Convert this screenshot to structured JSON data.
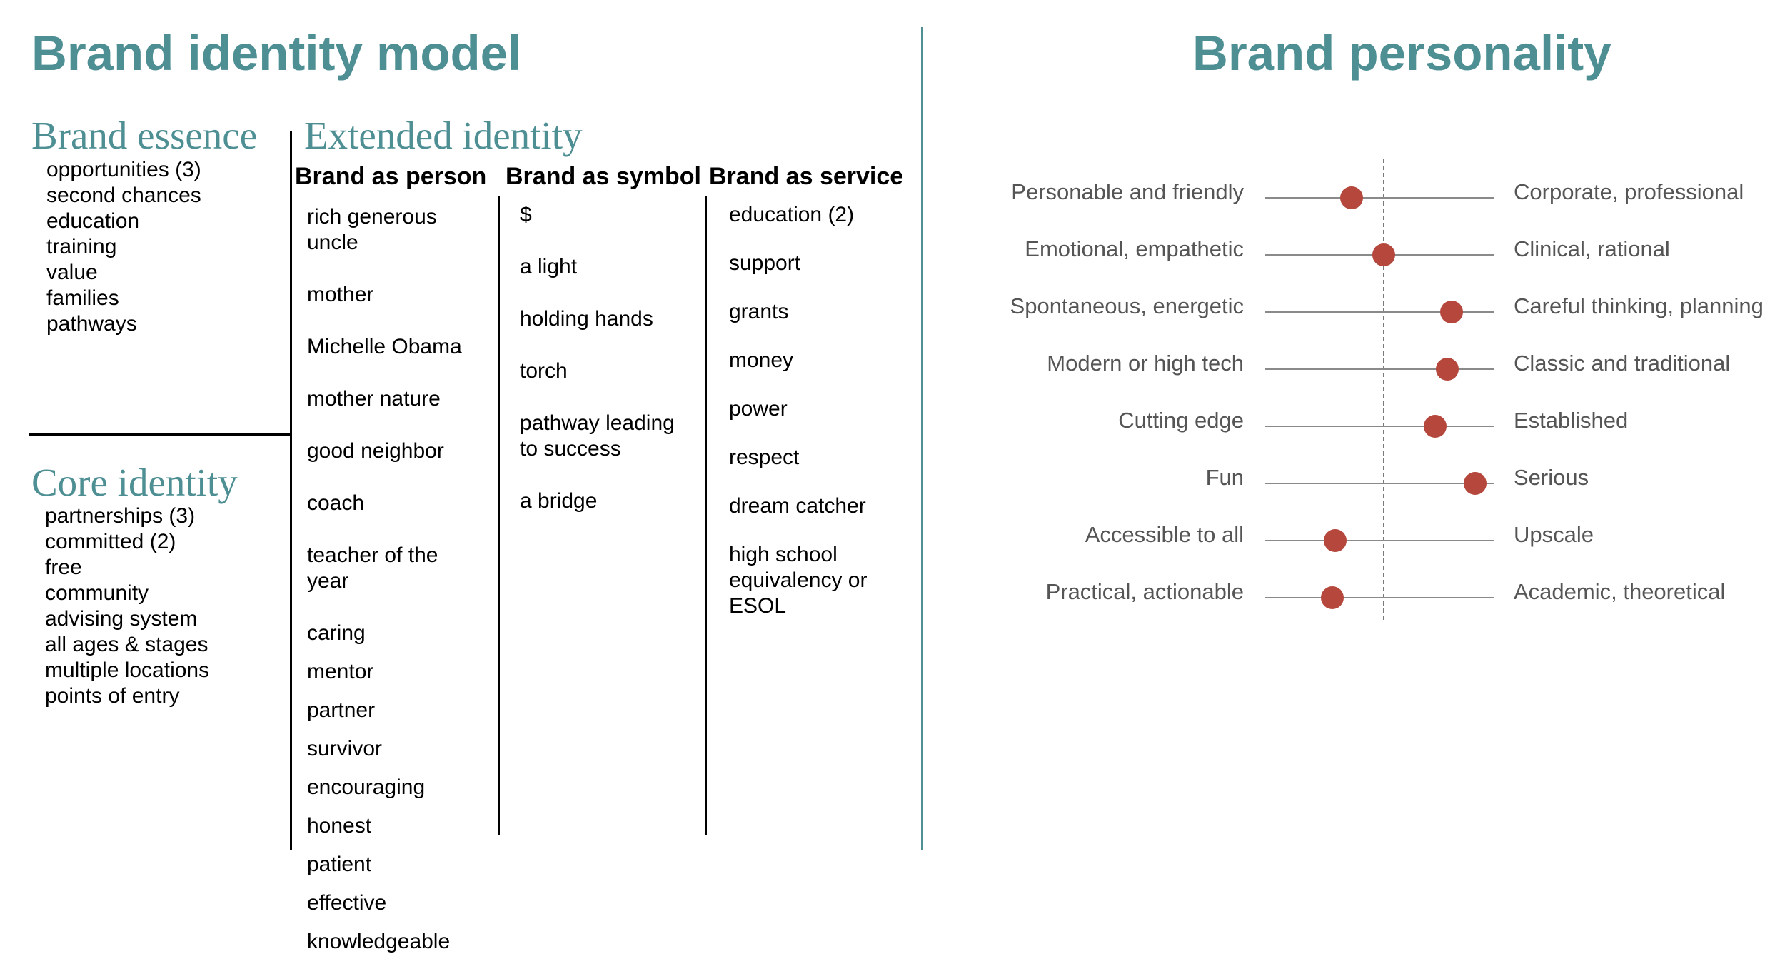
{
  "left": {
    "title": "Brand identity model",
    "essence": {
      "heading": "Brand essence",
      "items": [
        "opportunities (3)",
        "second chances",
        "education",
        "training",
        "value",
        "families",
        "pathways"
      ]
    },
    "core": {
      "heading": "Core identity",
      "items": [
        "partnerships (3)",
        "committed (2)",
        "free",
        "community",
        "advising system",
        "all ages & stages",
        "multiple locations",
        "points of entry"
      ]
    },
    "extended": {
      "heading": "Extended identity",
      "columns": [
        {
          "heading": "Brand as person",
          "entries": [
            [
              "rich generous",
              "uncle"
            ],
            [
              "mother"
            ],
            [
              "Michelle Obama"
            ],
            [
              "mother nature"
            ],
            [
              "good neighbor"
            ],
            [
              "coach"
            ],
            [
              "teacher of the",
              "year"
            ],
            [
              "caring"
            ],
            [
              "mentor"
            ],
            [
              "partner"
            ],
            [
              "survivor"
            ],
            [
              "encouraging"
            ],
            [
              "honest"
            ],
            [
              "patient"
            ],
            [
              "effective"
            ],
            [
              "knowledgeable"
            ]
          ]
        },
        {
          "heading": "Brand as symbol",
          "entries": [
            [
              "$"
            ],
            [
              "a light"
            ],
            [
              "holding hands"
            ],
            [
              "torch"
            ],
            [
              "pathway leading",
              "to success"
            ],
            [
              "a bridge"
            ]
          ]
        },
        {
          "heading": "Brand as service",
          "entries": [
            [
              "education (2)"
            ],
            [
              "support"
            ],
            [
              "grants"
            ],
            [
              "money"
            ],
            [
              "power"
            ],
            [
              "respect"
            ],
            [
              "dream catcher"
            ],
            [
              "high school",
              "equivalency or",
              "ESOL"
            ]
          ]
        }
      ]
    }
  },
  "right": {
    "title": "Brand personality",
    "scales": [
      {
        "left": "Personable and friendly",
        "right": "Corporate, professional",
        "value": -0.29
      },
      {
        "left": "Emotional, empathetic",
        "right": "Clinical, rational",
        "value": 0.0
      },
      {
        "left": "Spontaneous, energetic",
        "right": "Careful thinking, planning",
        "value": 0.62
      },
      {
        "left": "Modern or high tech",
        "right": "Classic and traditional",
        "value": 0.58
      },
      {
        "left": "Cutting edge",
        "right": "Established",
        "value": 0.47
      },
      {
        "left": "Fun",
        "right": "Serious",
        "value": 0.83
      },
      {
        "left": "Accessible to all",
        "right": "Upscale",
        "value": -0.44
      },
      {
        "left": "Practical, actionable",
        "right": "Academic, theoretical",
        "value": -0.47
      }
    ],
    "colors": {
      "accent": "#4E8F94",
      "marker": "#B5473C"
    }
  }
}
